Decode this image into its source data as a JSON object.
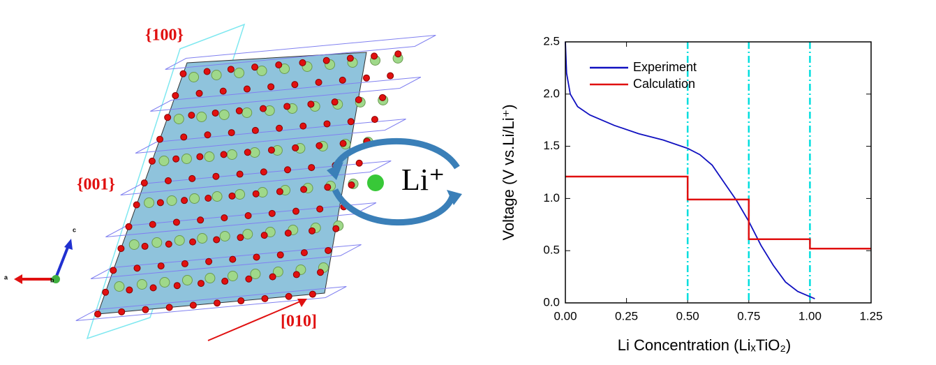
{
  "figure": {
    "labels": {
      "plane_100": "{100}",
      "plane_001": "{001}",
      "direction_010": "[010]",
      "ion": "Li⁺",
      "axis_a": "a",
      "axis_b": "b",
      "axis_c": "c"
    }
  },
  "chart_data": {
    "type": "line",
    "xlabel": "Li Concentration (LiₓTiO₂)",
    "ylabel": "Voltage (V vs.Li/Li⁺)",
    "xlim": [
      0,
      1.25
    ],
    "ylim": [
      0,
      2.5
    ],
    "xticks": [
      {
        "value": 0,
        "label": "0.00"
      },
      {
        "value": 0.25,
        "label": "0.25"
      },
      {
        "value": 0.5,
        "label": "0.50"
      },
      {
        "value": 0.75,
        "label": "0.75"
      },
      {
        "value": 1,
        "label": "1.00"
      },
      {
        "value": 1.25,
        "label": "1.25"
      }
    ],
    "yticks": [
      {
        "value": 0,
        "label": "0.0"
      },
      0.5,
      {
        "value": 1,
        "label": "1.0"
      },
      1.5,
      {
        "value": 2,
        "label": "2.0"
      },
      2.5
    ],
    "legend": "upper left",
    "reference_lines": {
      "x": [
        0.5,
        0.75,
        1.0
      ],
      "color": "#00dede"
    },
    "series": [
      {
        "name": "Experiment",
        "color": "#1010c0",
        "x": [
          0,
          0.005,
          0.02,
          0.05,
          0.1,
          0.2,
          0.3,
          0.4,
          0.5,
          0.55,
          0.6,
          0.65,
          0.7,
          0.75,
          0.8,
          0.85,
          0.9,
          0.95,
          1.0,
          1.02
        ],
        "values": [
          2.5,
          2.2,
          2.0,
          1.88,
          1.8,
          1.7,
          1.62,
          1.56,
          1.48,
          1.42,
          1.32,
          1.15,
          0.98,
          0.78,
          0.55,
          0.36,
          0.2,
          0.11,
          0.06,
          0.04
        ]
      },
      {
        "name": "Calculation",
        "color": "#e01010",
        "x": [
          0,
          0.5,
          0.5,
          0.75,
          0.75,
          1.0,
          1.0,
          1.25
        ],
        "values": [
          1.21,
          1.21,
          0.99,
          0.99,
          0.61,
          0.61,
          0.52,
          0.52
        ]
      }
    ]
  }
}
